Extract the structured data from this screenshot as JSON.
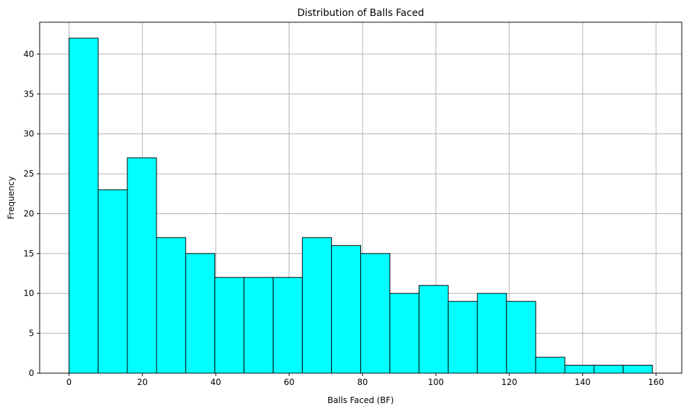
{
  "chart_data": {
    "type": "bar",
    "title": "Distribution of Balls Faced",
    "xlabel": "Balls Faced (BF)",
    "ylabel": "Frequency",
    "bin_edges": [
      0,
      7.95,
      15.9,
      23.85,
      31.8,
      39.75,
      47.7,
      55.65,
      63.6,
      71.55,
      79.5,
      87.45,
      95.4,
      103.35,
      111.3,
      119.25,
      127.2,
      135.15,
      143.1,
      151.05,
      159
    ],
    "values": [
      42,
      23,
      27,
      17,
      15,
      12,
      12,
      12,
      17,
      16,
      15,
      10,
      11,
      9,
      10,
      9,
      2,
      1,
      1,
      1
    ],
    "xlim": [
      -8,
      167
    ],
    "ylim": [
      0,
      44
    ],
    "xticks": [
      0,
      20,
      40,
      60,
      80,
      100,
      120,
      140,
      160
    ],
    "yticks": [
      0,
      5,
      10,
      15,
      20,
      25,
      30,
      35,
      40
    ],
    "grid": true,
    "bar_color": "#00ffff",
    "edge_color": "#000000",
    "grid_color": "#b0b0b0"
  }
}
